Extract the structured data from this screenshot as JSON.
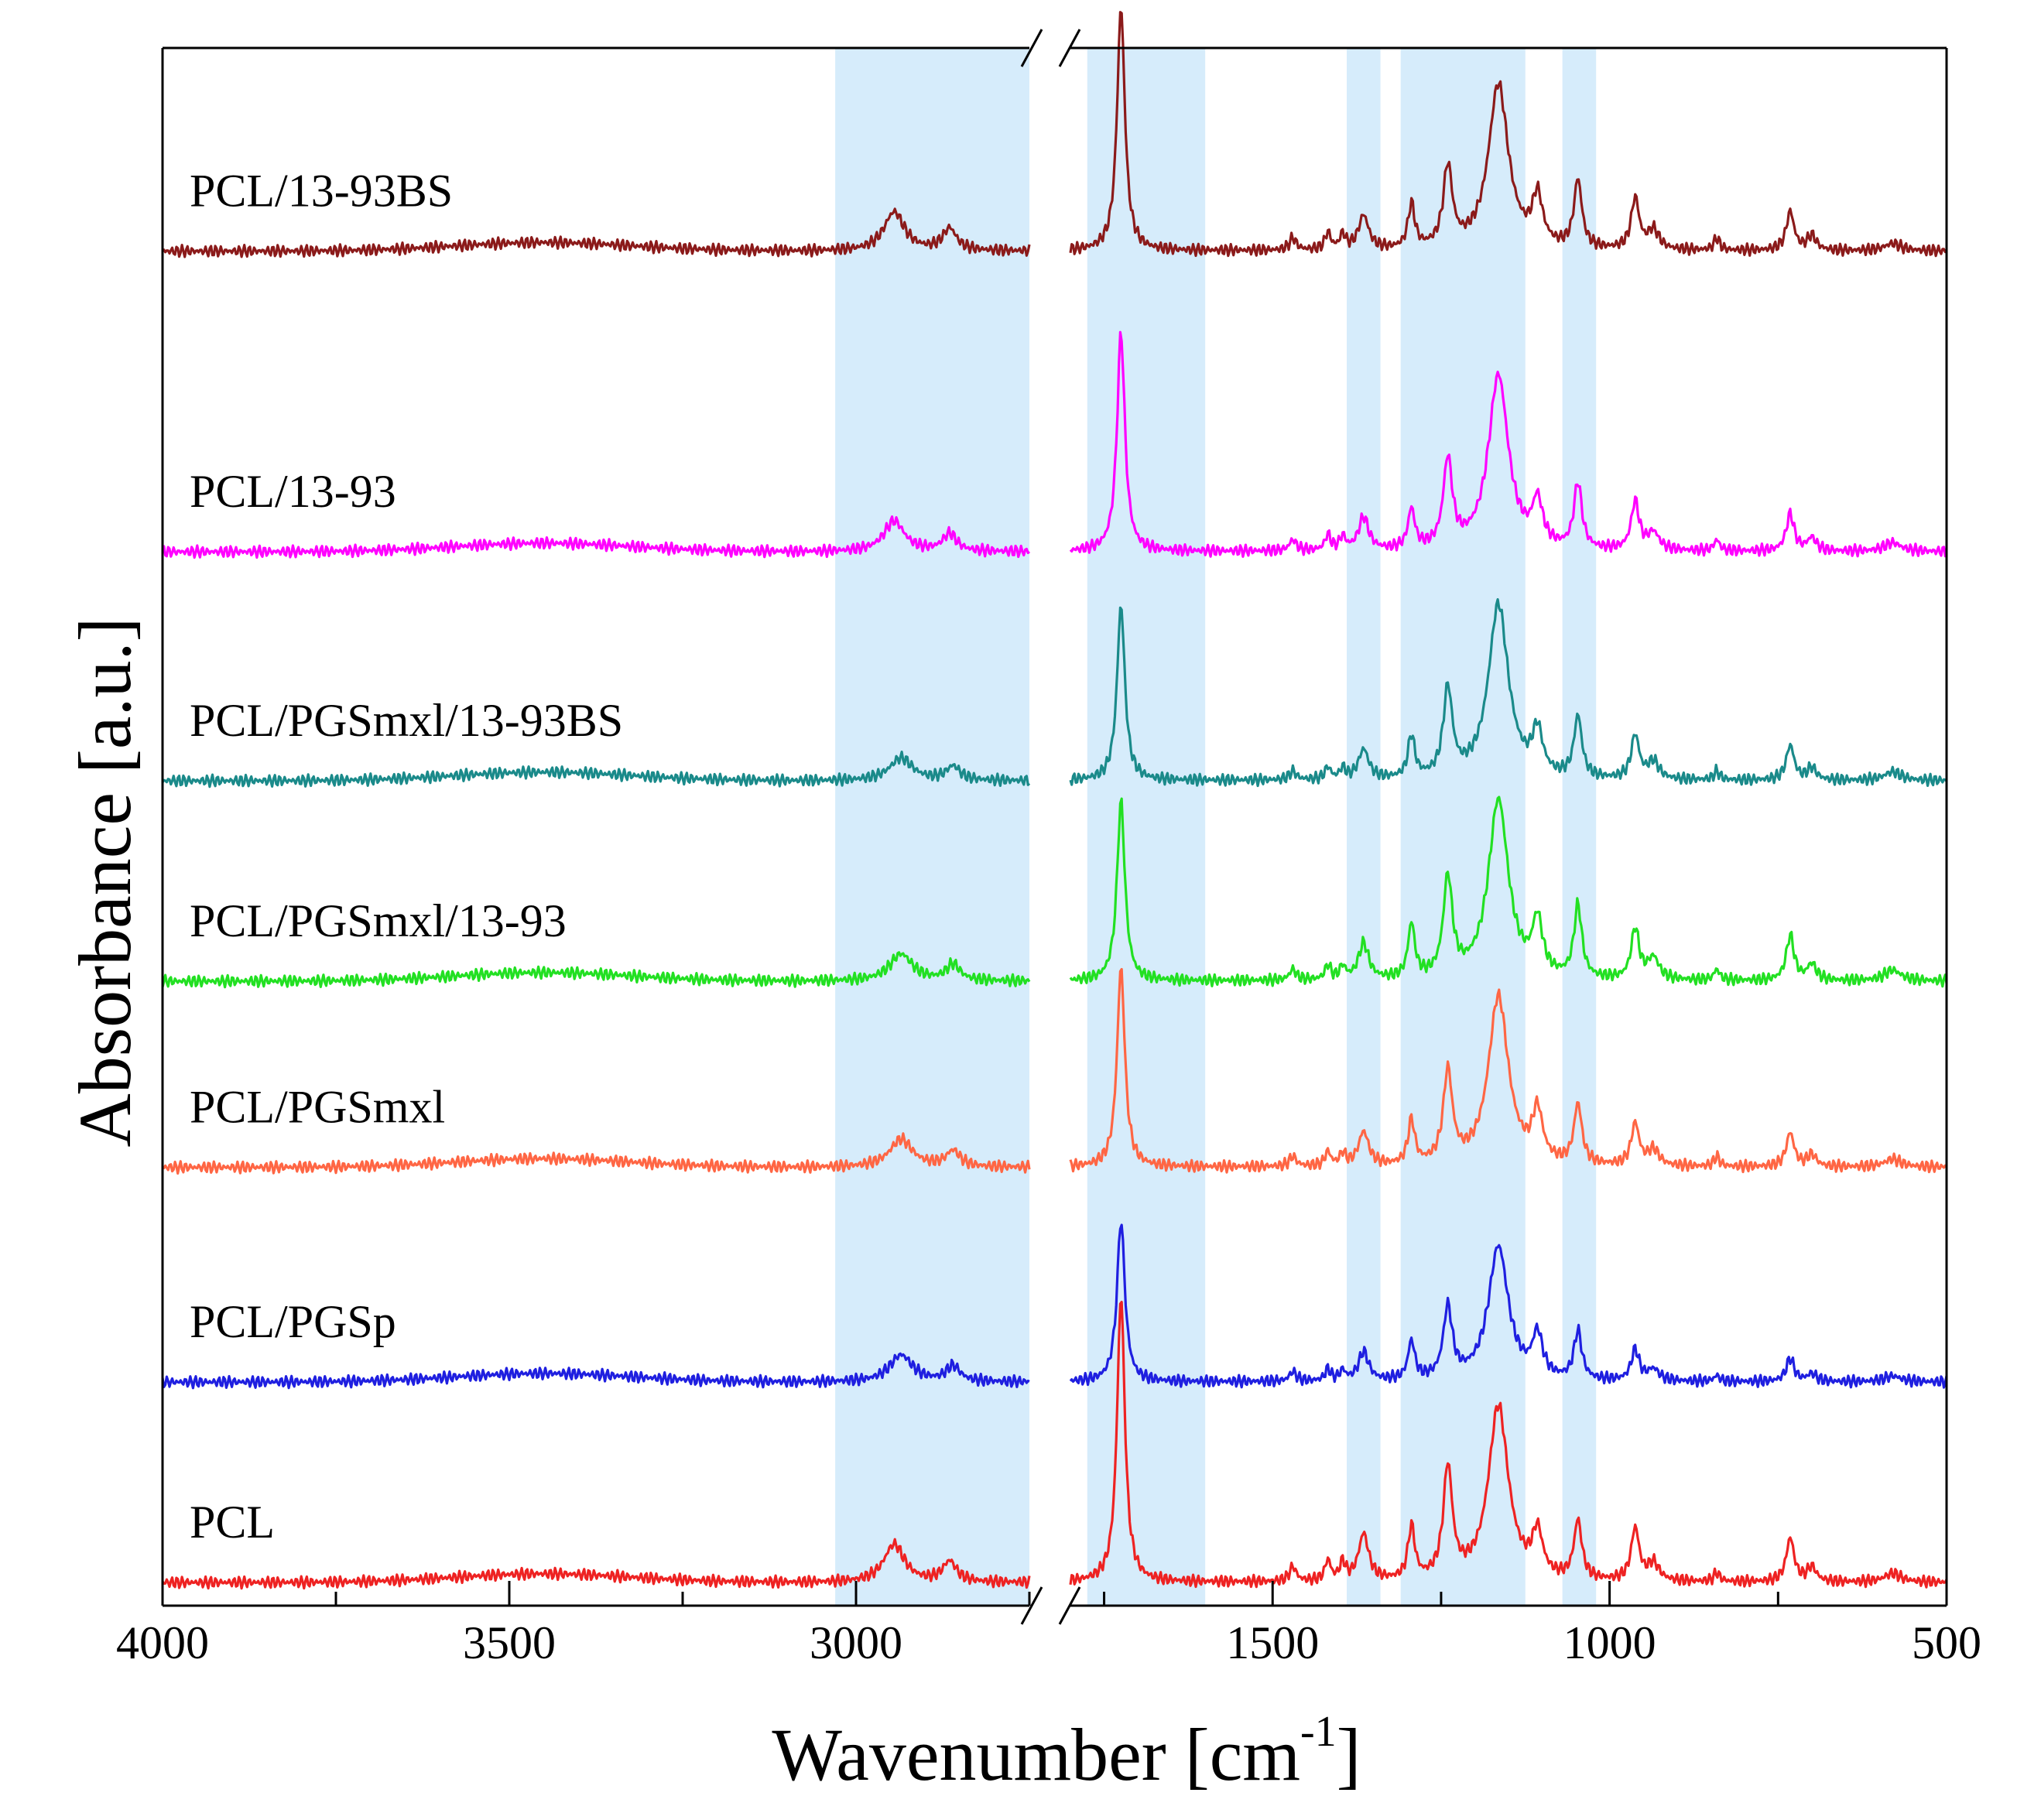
{
  "chart_data": {
    "type": "line",
    "xlabel": "Wavenumber [cm",
    "xlabel_sup": "-1",
    "xlabel_end": "]",
    "ylabel": "Absorbance [a.u.]",
    "xlim": [
      4000,
      500
    ],
    "axis_break": [
      2750,
      1800
    ],
    "x_ticks": [
      {
        "value": 4000,
        "label": "4000"
      },
      {
        "value": 3500,
        "label": "3500"
      },
      {
        "value": 3000,
        "label": "3000"
      },
      {
        "value": 1500,
        "label": "1500"
      },
      {
        "value": 1000,
        "label": "1000"
      },
      {
        "value": 500,
        "label": "500"
      }
    ],
    "highlight_bands": [
      [
        3030,
        2750
      ],
      [
        1775,
        1600
      ],
      [
        1390,
        1340
      ],
      [
        1310,
        1125
      ],
      [
        1070,
        1020
      ]
    ],
    "series": [
      {
        "name": "PCL/13-93BS",
        "color": "#8b1a1a",
        "baseline": 0.93,
        "scale": 1.0,
        "peaks": [
          [
            2945,
            0.16,
            18
          ],
          [
            2865,
            0.09,
            12
          ],
          [
            1725,
            1.0,
            7
          ],
          [
            1470,
            0.05,
            6
          ],
          [
            1418,
            0.07,
            5
          ],
          [
            1396,
            0.06,
            5
          ],
          [
            1365,
            0.14,
            9
          ],
          [
            1294,
            0.18,
            6
          ],
          [
            1240,
            0.33,
            8
          ],
          [
            1165,
            0.68,
            18
          ],
          [
            1107,
            0.2,
            9
          ],
          [
            1047,
            0.28,
            7
          ],
          [
            962,
            0.21,
            7
          ],
          [
            935,
            0.08,
            10
          ],
          [
            841,
            0.05,
            5
          ],
          [
            732,
            0.16,
            7
          ],
          [
            700,
            0.06,
            8
          ],
          [
            580,
            0.03,
            15
          ]
        ]
      },
      {
        "name": "PCL/13-93",
        "color": "#ff00ff",
        "baseline": 0.72,
        "scale": 0.9,
        "peaks": [
          [
            2945,
            0.14,
            18
          ],
          [
            2865,
            0.08,
            12
          ],
          [
            1725,
            1.0,
            7
          ],
          [
            1470,
            0.05,
            6
          ],
          [
            1418,
            0.07,
            5
          ],
          [
            1396,
            0.06,
            5
          ],
          [
            1365,
            0.15,
            9
          ],
          [
            1294,
            0.18,
            6
          ],
          [
            1240,
            0.4,
            8
          ],
          [
            1165,
            0.8,
            18
          ],
          [
            1107,
            0.2,
            9
          ],
          [
            1047,
            0.3,
            7
          ],
          [
            962,
            0.22,
            7
          ],
          [
            935,
            0.08,
            10
          ],
          [
            841,
            0.05,
            5
          ],
          [
            732,
            0.17,
            7
          ],
          [
            700,
            0.06,
            8
          ],
          [
            580,
            0.04,
            15
          ]
        ]
      },
      {
        "name": "PCL/PGSmxl/13-93BS",
        "color": "#1a8a8a",
        "baseline": 0.56,
        "scale": 0.72,
        "peaks": [
          [
            2935,
            0.13,
            20
          ],
          [
            2860,
            0.08,
            12
          ],
          [
            1725,
            1.0,
            7
          ],
          [
            1470,
            0.05,
            6
          ],
          [
            1418,
            0.07,
            5
          ],
          [
            1396,
            0.06,
            5
          ],
          [
            1365,
            0.17,
            9
          ],
          [
            1294,
            0.24,
            6
          ],
          [
            1240,
            0.5,
            8
          ],
          [
            1165,
            1.0,
            18
          ],
          [
            1107,
            0.25,
            9
          ],
          [
            1047,
            0.35,
            7
          ],
          [
            962,
            0.25,
            7
          ],
          [
            935,
            0.1,
            10
          ],
          [
            841,
            0.05,
            5
          ],
          [
            732,
            0.2,
            7
          ],
          [
            700,
            0.07,
            8
          ],
          [
            580,
            0.05,
            15
          ]
        ]
      },
      {
        "name": "PCL/PGSmxl/13-93",
        "color": "#22e022",
        "baseline": 0.42,
        "scale": 0.74,
        "peaks": [
          [
            2935,
            0.15,
            20
          ],
          [
            2860,
            0.09,
            12
          ],
          [
            1725,
            1.0,
            7
          ],
          [
            1470,
            0.06,
            6
          ],
          [
            1418,
            0.08,
            5
          ],
          [
            1396,
            0.07,
            5
          ],
          [
            1365,
            0.2,
            9
          ],
          [
            1294,
            0.3,
            6
          ],
          [
            1240,
            0.55,
            8
          ],
          [
            1165,
            1.0,
            18
          ],
          [
            1107,
            0.3,
            9
          ],
          [
            1047,
            0.4,
            7
          ],
          [
            962,
            0.28,
            7
          ],
          [
            935,
            0.12,
            10
          ],
          [
            841,
            0.06,
            5
          ],
          [
            732,
            0.25,
            7
          ],
          [
            700,
            0.09,
            8
          ],
          [
            580,
            0.06,
            15
          ]
        ]
      },
      {
        "name": "PCL/PGSmxl",
        "color": "#ff6644",
        "baseline": 0.29,
        "scale": 0.82,
        "peaks": [
          [
            2935,
            0.14,
            20
          ],
          [
            2860,
            0.08,
            12
          ],
          [
            1725,
            1.0,
            7
          ],
          [
            1470,
            0.05,
            6
          ],
          [
            1418,
            0.07,
            5
          ],
          [
            1396,
            0.06,
            5
          ],
          [
            1365,
            0.17,
            9
          ],
          [
            1294,
            0.22,
            6
          ],
          [
            1240,
            0.46,
            8
          ],
          [
            1165,
            0.85,
            18
          ],
          [
            1107,
            0.25,
            9
          ],
          [
            1047,
            0.3,
            7
          ],
          [
            962,
            0.21,
            7
          ],
          [
            935,
            0.08,
            10
          ],
          [
            841,
            0.05,
            5
          ],
          [
            732,
            0.17,
            7
          ],
          [
            700,
            0.06,
            8
          ],
          [
            580,
            0.04,
            15
          ]
        ]
      },
      {
        "name": "PCL/PGSp",
        "color": "#1f1fe0",
        "baseline": 0.14,
        "scale": 0.79,
        "peaks": [
          [
            2935,
            0.14,
            20
          ],
          [
            2860,
            0.08,
            12
          ],
          [
            1725,
            0.84,
            7
          ],
          [
            1470,
            0.05,
            6
          ],
          [
            1418,
            0.06,
            5
          ],
          [
            1396,
            0.05,
            5
          ],
          [
            1365,
            0.15,
            9
          ],
          [
            1294,
            0.2,
            6
          ],
          [
            1240,
            0.37,
            8
          ],
          [
            1165,
            0.7,
            18
          ],
          [
            1107,
            0.22,
            9
          ],
          [
            1047,
            0.25,
            7
          ],
          [
            962,
            0.16,
            7
          ],
          [
            935,
            0.06,
            10
          ],
          [
            841,
            0.03,
            5
          ],
          [
            732,
            0.12,
            7
          ],
          [
            700,
            0.04,
            8
          ],
          [
            580,
            0.03,
            15
          ]
        ]
      },
      {
        "name": "PCL",
        "color": "#ee2222",
        "baseline": 0.0,
        "scale": 1.2,
        "peaks": [
          [
            2945,
            0.13,
            18
          ],
          [
            2865,
            0.07,
            12
          ],
          [
            1725,
            0.98,
            7
          ],
          [
            1470,
            0.05,
            6
          ],
          [
            1418,
            0.07,
            5
          ],
          [
            1396,
            0.06,
            5
          ],
          [
            1365,
            0.16,
            9
          ],
          [
            1294,
            0.18,
            6
          ],
          [
            1240,
            0.38,
            8
          ],
          [
            1165,
            0.6,
            18
          ],
          [
            1107,
            0.15,
            9
          ],
          [
            1047,
            0.2,
            7
          ],
          [
            962,
            0.18,
            7
          ],
          [
            935,
            0.06,
            10
          ],
          [
            841,
            0.03,
            5
          ],
          [
            732,
            0.15,
            7
          ],
          [
            700,
            0.05,
            8
          ],
          [
            580,
            0.03,
            15
          ]
        ]
      }
    ]
  }
}
